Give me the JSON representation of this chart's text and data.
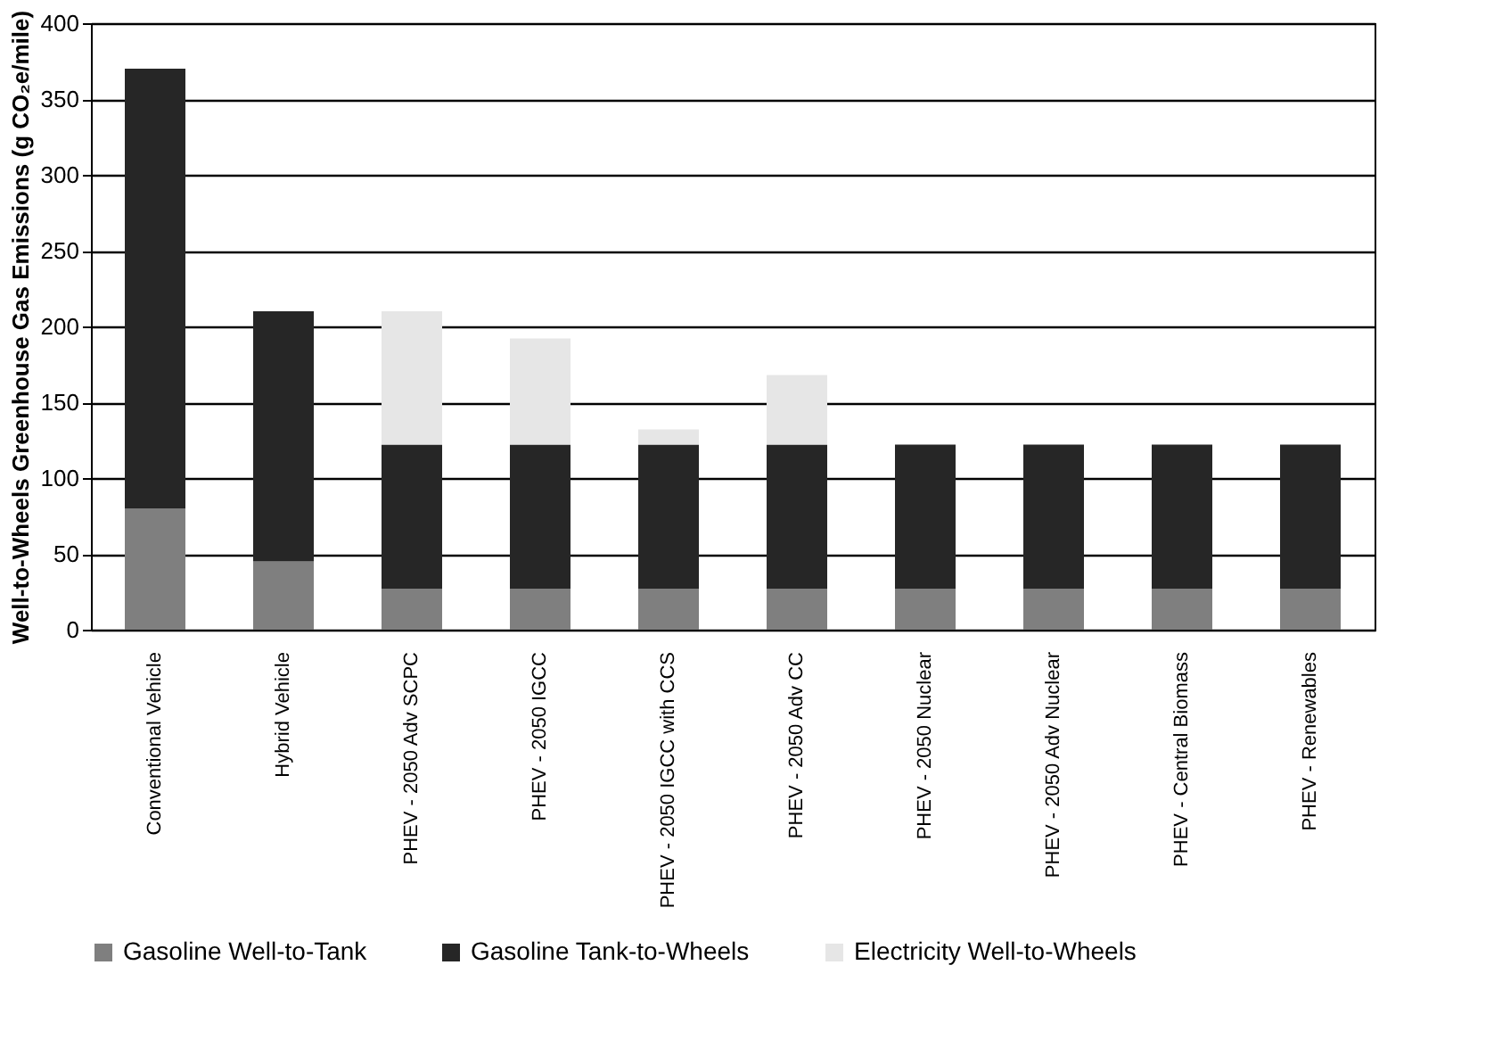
{
  "chart_data": {
    "type": "bar",
    "stacked": true,
    "ylabel": "Well-to-Wheels Greenhouse Gas Emissions (g CO₂e/mile)",
    "categories": [
      "Conventional Vehicle",
      "Hybrid Vehicle",
      "PHEV - 2050 Adv SCPC",
      "PHEV - 2050 IGCC",
      "PHEV - 2050 IGCC with CCS",
      "PHEV - 2050 Adv CC",
      "PHEV - 2050 Nuclear",
      "PHEV - 2050 Adv Nuclear",
      "PHEV - Central Biomass",
      "PHEV - Renewables"
    ],
    "series": [
      {
        "name": "Gasoline Well-to-Tank",
        "color": "#7f7f7f",
        "values": [
          80,
          45,
          27,
          27,
          27,
          27,
          27,
          27,
          27,
          27
        ]
      },
      {
        "name": "Gasoline Tank-to-Wheels",
        "color": "#262626",
        "values": [
          290,
          165,
          95,
          95,
          95,
          95,
          95,
          95,
          95,
          95
        ]
      },
      {
        "name": "Electricity Well-to-Wheels",
        "color": "#e6e6e6",
        "values": [
          0,
          0,
          88,
          70,
          10,
          46,
          0,
          null,
          null,
          null
        ]
      }
    ],
    "ylim": [
      0,
      400
    ],
    "yticks": [
      0,
      50,
      100,
      150,
      200,
      250,
      300,
      350,
      400
    ],
    "grid": "y",
    "legend": "bottom"
  }
}
